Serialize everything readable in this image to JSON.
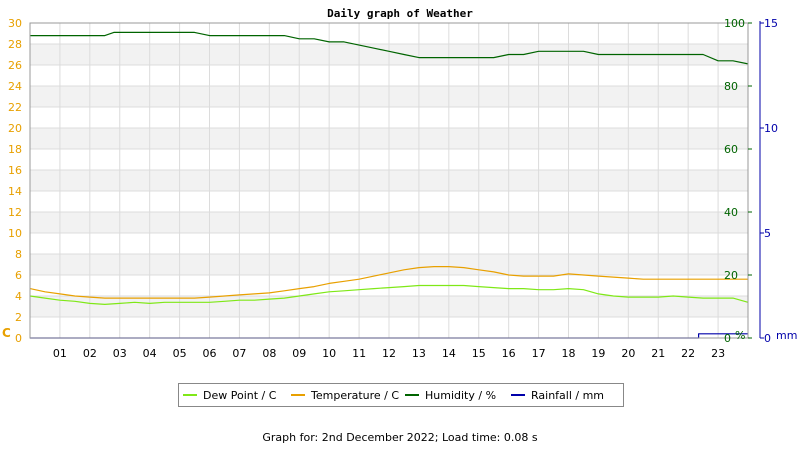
{
  "chart_data": {
    "type": "line",
    "title": "Daily graph of Weather",
    "x_ticks": [
      "01",
      "02",
      "03",
      "04",
      "05",
      "06",
      "07",
      "08",
      "09",
      "10",
      "11",
      "12",
      "13",
      "14",
      "15",
      "16",
      "17",
      "18",
      "19",
      "20",
      "21",
      "22",
      "23"
    ],
    "x_range": [
      0,
      24
    ],
    "grid": true,
    "axes": {
      "left": {
        "unit_label": "C",
        "range": [
          0,
          30
        ],
        "ticks": [
          "0",
          "2",
          "4",
          "6",
          "8",
          "10",
          "12",
          "14",
          "16",
          "18",
          "20",
          "22",
          "24",
          "26",
          "28",
          "30"
        ],
        "color": "#e8a000"
      },
      "right1": {
        "unit_label": "%",
        "range": [
          0,
          100
        ],
        "ticks": [
          "0",
          "20",
          "40",
          "60",
          "80",
          "100"
        ],
        "color": "#006400"
      },
      "right2": {
        "unit_label": "mm",
        "range": [
          0,
          15
        ],
        "ticks": [
          "0",
          "5",
          "10",
          "15"
        ],
        "color": "#0000aa"
      }
    },
    "legend_position": "bottom",
    "series": [
      {
        "name": "Dew Point / C",
        "axis": "left",
        "color": "#7fe817",
        "x": [
          0,
          0.5,
          1,
          1.5,
          2,
          2.5,
          3,
          3.5,
          4,
          4.5,
          5,
          5.5,
          6,
          6.5,
          7,
          7.5,
          8,
          8.5,
          9,
          9.5,
          10,
          10.5,
          11,
          11.5,
          12,
          12.5,
          13,
          13.5,
          14,
          14.5,
          15,
          15.5,
          16,
          16.5,
          17,
          17.5,
          18,
          18.5,
          19,
          19.5,
          20,
          20.5,
          21,
          21.5,
          22,
          22.5,
          23,
          23.5,
          24
        ],
        "values": [
          4.0,
          3.8,
          3.6,
          3.5,
          3.3,
          3.2,
          3.3,
          3.4,
          3.3,
          3.4,
          3.4,
          3.4,
          3.4,
          3.5,
          3.6,
          3.6,
          3.7,
          3.8,
          4.0,
          4.2,
          4.4,
          4.5,
          4.6,
          4.7,
          4.8,
          4.9,
          5.0,
          5.0,
          5.0,
          5.0,
          4.9,
          4.8,
          4.7,
          4.7,
          4.6,
          4.6,
          4.7,
          4.6,
          4.2,
          4.0,
          3.9,
          3.9,
          3.9,
          4.0,
          3.9,
          3.8,
          3.8,
          3.8,
          3.4
        ]
      },
      {
        "name": "Temperature / C",
        "axis": "left",
        "color": "#e8a000",
        "x": [
          0,
          0.5,
          1,
          1.5,
          2,
          2.5,
          3,
          3.5,
          4,
          4.5,
          5,
          5.5,
          6,
          6.5,
          7,
          7.5,
          8,
          8.5,
          9,
          9.5,
          10,
          10.5,
          11,
          11.5,
          12,
          12.5,
          13,
          13.5,
          14,
          14.5,
          15,
          15.5,
          16,
          16.5,
          17,
          17.5,
          18,
          18.5,
          19,
          19.5,
          20,
          20.5,
          21,
          21.5,
          22,
          22.5,
          23,
          23.5,
          24
        ],
        "values": [
          4.7,
          4.4,
          4.2,
          4.0,
          3.9,
          3.8,
          3.8,
          3.8,
          3.8,
          3.8,
          3.8,
          3.8,
          3.9,
          4.0,
          4.1,
          4.2,
          4.3,
          4.5,
          4.7,
          4.9,
          5.2,
          5.4,
          5.6,
          5.9,
          6.2,
          6.5,
          6.7,
          6.8,
          6.8,
          6.7,
          6.5,
          6.3,
          6.0,
          5.9,
          5.9,
          5.9,
          6.1,
          6.0,
          5.9,
          5.8,
          5.7,
          5.6,
          5.6,
          5.6,
          5.6,
          5.6,
          5.6,
          5.6,
          5.6
        ]
      },
      {
        "name": "Humidity / %",
        "axis": "right1",
        "color": "#006400",
        "x": [
          0,
          0.5,
          1,
          1.5,
          2,
          2.5,
          2.8,
          3,
          3.5,
          4,
          4.5,
          5,
          5.5,
          6,
          6.5,
          7,
          7.5,
          8,
          8.5,
          9,
          9.5,
          10,
          10.5,
          11,
          11.5,
          12,
          12.5,
          13,
          13.5,
          14,
          14.5,
          15,
          15.5,
          16,
          16.5,
          17,
          17.5,
          18,
          18.5,
          19,
          19.5,
          20,
          20.5,
          21,
          21.5,
          22,
          22.5,
          23,
          23.5,
          24
        ],
        "values": [
          96,
          96,
          96,
          96,
          96,
          96,
          97,
          97,
          97,
          97,
          97,
          97,
          97,
          96,
          96,
          96,
          96,
          96,
          96,
          95,
          95,
          94,
          94,
          93,
          92,
          91,
          90,
          89,
          89,
          89,
          89,
          89,
          89,
          90,
          90,
          91,
          91,
          91,
          91,
          90,
          90,
          90,
          90,
          90,
          90,
          90,
          90,
          88,
          88,
          87
        ]
      },
      {
        "name": "Rainfall / mm",
        "axis": "right2",
        "color": "#0000aa",
        "x": [
          0,
          22.35,
          22.35,
          24
        ],
        "values": [
          0,
          0,
          0.2,
          0.2
        ]
      }
    ]
  },
  "footer": "Graph for: 2nd December 2022; Load time: 0.08 s"
}
